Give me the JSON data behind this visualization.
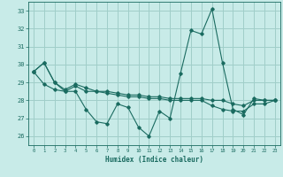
{
  "xlabel": "Humidex (Indice chaleur)",
  "xlim": [
    -0.5,
    23.5
  ],
  "ylim": [
    25.5,
    33.5
  ],
  "yticks": [
    26,
    27,
    28,
    29,
    30,
    31,
    32,
    33
  ],
  "xticks": [
    0,
    1,
    2,
    3,
    4,
    5,
    6,
    7,
    8,
    9,
    10,
    11,
    12,
    13,
    14,
    15,
    16,
    17,
    18,
    19,
    20,
    21,
    22,
    23
  ],
  "background_color": "#c8ebe8",
  "grid_color": "#a0cec9",
  "line_color": "#1a6b60",
  "series1_y": [
    29.6,
    30.1,
    29.0,
    28.5,
    28.5,
    27.5,
    26.8,
    26.7,
    27.8,
    27.6,
    26.5,
    26.0,
    27.4,
    27.0,
    29.5,
    31.9,
    31.7,
    33.1,
    30.1,
    27.5,
    27.2,
    28.1,
    28.0,
    28.0
  ],
  "series2_y": [
    29.6,
    30.1,
    29.0,
    28.6,
    28.9,
    28.7,
    28.5,
    28.5,
    28.4,
    28.3,
    28.3,
    28.2,
    28.2,
    28.1,
    28.1,
    28.1,
    28.1,
    28.0,
    28.0,
    27.8,
    27.7,
    28.0,
    28.0,
    28.0
  ],
  "series3_y": [
    29.6,
    28.9,
    28.6,
    28.5,
    28.8,
    28.5,
    28.5,
    28.4,
    28.3,
    28.2,
    28.2,
    28.1,
    28.1,
    28.0,
    28.0,
    28.0,
    28.0,
    27.7,
    27.5,
    27.4,
    27.4,
    27.8,
    27.8,
    28.0
  ]
}
